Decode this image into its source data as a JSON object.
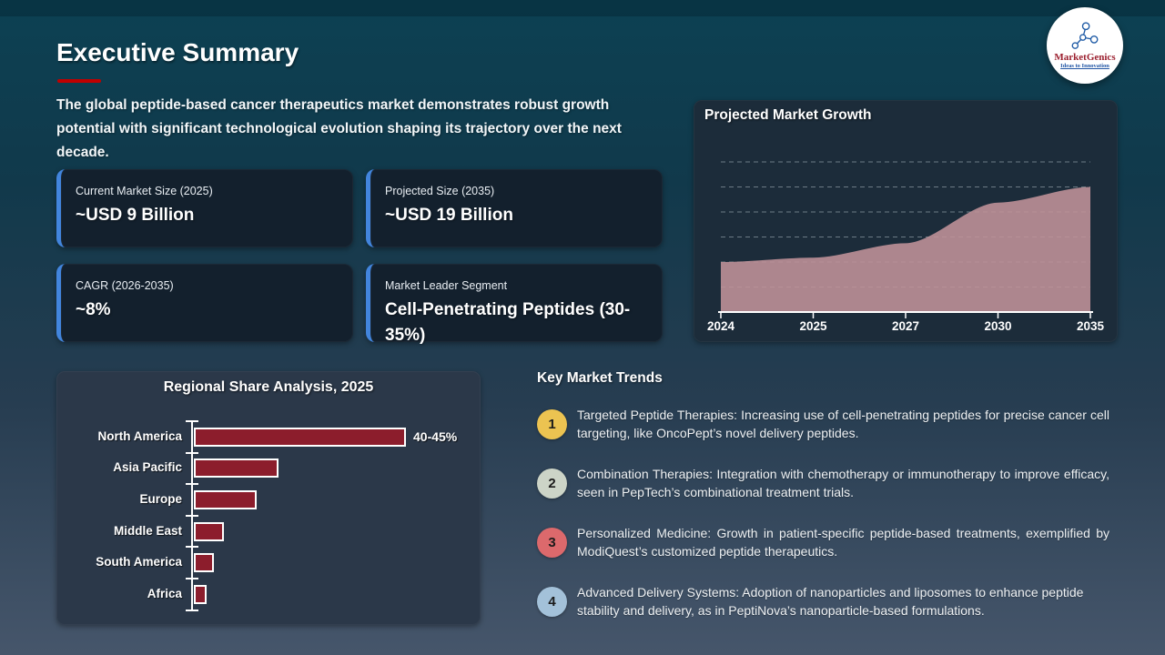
{
  "slide": {
    "title": "Executive Summary",
    "intro": "The global peptide-based cancer therapeutics market demonstrates robust growth potential with significant technological evolution shaping its trajectory over the next decade."
  },
  "logo": {
    "name": "MarketGenics",
    "tagline": "Ideas to Innovation"
  },
  "stat_cards": [
    {
      "label": "Current Market Size (2025)",
      "value": "~USD 9 Billion"
    },
    {
      "label": "Projected Size (2035)",
      "value": "~USD 19 Billion"
    },
    {
      "label": "CAGR (2026-2035)",
      "value": "~8%"
    },
    {
      "label": "Market Leader Segment",
      "value": "Cell-Penetrating Peptides (30-35%)"
    }
  ],
  "chart_data": [
    {
      "type": "area",
      "title": "Projected Market Growth",
      "x": [
        "2024",
        "2025",
        "2027",
        "2030",
        "2035"
      ],
      "values": [
        8,
        8.7,
        11,
        17.5,
        20
      ],
      "values_note": "y-axis unlabeled; values estimated from gridlines in USD billion",
      "xlabel": "",
      "ylabel": "",
      "ylim": [
        0,
        24
      ],
      "gridline_step": 4,
      "grid": "horizontal dashed",
      "legend": "none",
      "fill_color": "#c2939a"
    },
    {
      "type": "bar",
      "title": "Regional Share Analysis, 2025",
      "orientation": "horizontal",
      "categories": [
        "North America",
        "Asia Pacific",
        "Europe",
        "Middle East",
        "South America",
        "Africa"
      ],
      "values": [
        42.5,
        17,
        12.5,
        6,
        4,
        2.5
      ],
      "value_labels": [
        "40-45%",
        "",
        "",
        "",
        "",
        ""
      ],
      "values_note": "only North America labeled (40-45%); other values estimated from bar lengths",
      "xlim": [
        0,
        50
      ],
      "grid": "off",
      "legend": "none",
      "bar_color": "#8c1d2c"
    }
  ],
  "trends": {
    "heading": "Key Market Trends",
    "items": [
      {
        "number": "1",
        "badge_color": "#ecc351",
        "text": "Targeted Peptide Therapies: Increasing use of cell-penetrating peptides for precise cancer cell targeting, like OncoPept’s novel delivery peptides."
      },
      {
        "number": "2",
        "badge_color": "#ccd4c7",
        "text": "Combination Therapies: Integration with chemotherapy or immunotherapy to improve efficacy, seen in PepTech’s combinational treatment trials."
      },
      {
        "number": "3",
        "badge_color": "#dc696c",
        "text": "Personalized Medicine: Growth in patient-specific peptide-based treatments, exemplified by ModiQuest’s customized peptide therapeutics."
      },
      {
        "number": "4",
        "badge_color": "#a3c1d9",
        "text": "Advanced Delivery Systems: Adoption of nanoparticles and liposomes to enhance peptide stability and delivery, as in PeptiNova’s nanoparticle-based formulations."
      }
    ]
  },
  "colors": {
    "title_underline": "#c00000",
    "card_accent": "#4285dd",
    "area_fill": "#c2939a",
    "bar_fill": "#8c1d2c",
    "logo_wordmark": "#9b1f2e",
    "logo_tagline": "#2155a4",
    "panel_dark": "#1c2c3a",
    "panel_slate": "#2b3849",
    "card_bg": "#13202d"
  }
}
